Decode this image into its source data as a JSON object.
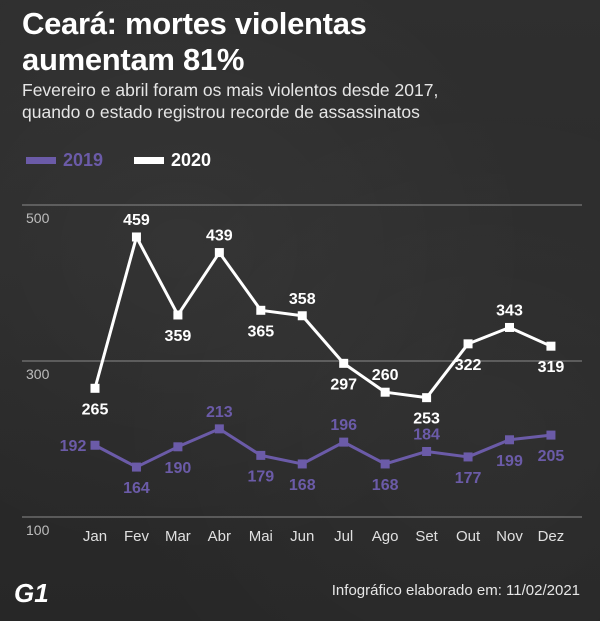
{
  "header": {
    "title_line1": "Ceará: mortes violentas",
    "title_line2": "aumentam 81%",
    "subtitle_line1": "Fevereiro e abril foram os mais violentos desde 2017,",
    "subtitle_line2": "quando o estado registrou recorde de assassinatos"
  },
  "footer": {
    "logo": "G1",
    "note": "Infográfico elaborado em: 11/02/2021"
  },
  "colors": {
    "series_2019": "#6b5ba8",
    "series_2020": "#ffffff",
    "grid": "#8a8a8a",
    "axis_text": "#e0e0e0"
  },
  "chart_data": {
    "type": "line",
    "title": "Ceará: mortes violentas aumentam 81%",
    "xlabel": "",
    "ylabel": "",
    "categories": [
      "Jan",
      "Fev",
      "Mar",
      "Abr",
      "Mai",
      "Jun",
      "Jul",
      "Ago",
      "Set",
      "Out",
      "Nov",
      "Dez"
    ],
    "y_ticks": [
      100,
      300,
      500
    ],
    "ylim": [
      100,
      500
    ],
    "grid": true,
    "legend_position": "top-left",
    "series": [
      {
        "name": "2019",
        "color": "#6b5ba8",
        "values": [
          192,
          164,
          190,
          213,
          179,
          168,
          196,
          168,
          184,
          177,
          199,
          205
        ]
      },
      {
        "name": "2020",
        "color": "#ffffff",
        "values": [
          265,
          459,
          359,
          439,
          365,
          358,
          297,
          260,
          253,
          322,
          343,
          319
        ]
      }
    ]
  }
}
